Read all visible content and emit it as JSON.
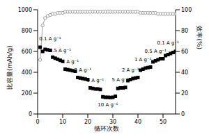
{
  "chart_data": {
    "type": "line",
    "x_label": "循环次数",
    "y_label": "比容量(mAh/g)",
    "y2_label": "效率(%)",
    "x": [
      1,
      2,
      3,
      4,
      5,
      6,
      7,
      8,
      9,
      10,
      11,
      12,
      13,
      14,
      15,
      16,
      17,
      18,
      19,
      20,
      21,
      22,
      23,
      24,
      25,
      26,
      27,
      28,
      29,
      30,
      31,
      32,
      33,
      34,
      35,
      36,
      37,
      38,
      39,
      40,
      41,
      42,
      43,
      44,
      45,
      46,
      47,
      48,
      49,
      50,
      51,
      52,
      53,
      54,
      55
    ],
    "xlim": [
      0,
      55
    ],
    "xticks": [
      0,
      10,
      20,
      30,
      40,
      50
    ],
    "ylim": [
      0,
      1000
    ],
    "yticks": [
      0,
      200,
      400,
      600,
      800,
      1000
    ],
    "y2lim": [
      0,
      100
    ],
    "y2ticks": [
      0,
      20,
      40,
      60,
      80,
      100
    ],
    "series": [
      {
        "name": "比容量",
        "axis": "y",
        "color": "#000000",
        "marker": "square",
        "line_style": "none",
        "values": [
          640,
          600,
          620,
          615,
          610,
          545,
          535,
          525,
          515,
          505,
          430,
          425,
          420,
          415,
          410,
          350,
          345,
          340,
          335,
          330,
          250,
          245,
          240,
          240,
          235,
          165,
          160,
          160,
          158,
          160,
          170,
          245,
          250,
          250,
          255,
          320,
          330,
          340,
          345,
          350,
          420,
          430,
          440,
          445,
          450,
          500,
          510,
          520,
          530,
          530,
          560,
          570,
          580,
          590,
          600
        ]
      },
      {
        "name": "效率",
        "axis": "y2",
        "color": "#888888",
        "marker": "circle",
        "line_style": "solid",
        "values": [
          52,
          85,
          92,
          94,
          95,
          96,
          96,
          97,
          97,
          97,
          98,
          98,
          98,
          98,
          98,
          98,
          98,
          98,
          98,
          98,
          98,
          98,
          98,
          98,
          98,
          98,
          98,
          98,
          98,
          98,
          98,
          98,
          98,
          98,
          98,
          98,
          98,
          98,
          98,
          98,
          97,
          97,
          97,
          97,
          97,
          97,
          97,
          96,
          96,
          96,
          96,
          96,
          96,
          96,
          96
        ]
      }
    ],
    "annotations": [
      {
        "text": "0.1 A g⁻¹",
        "x": 5,
        "y": 720
      },
      {
        "text": "0.5 A g⁻¹",
        "x": 9,
        "y": 610
      },
      {
        "text": "1 A g⁻¹",
        "x": 13,
        "y": 500
      },
      {
        "text": "2 A g⁻¹",
        "x": 18,
        "y": 420
      },
      {
        "text": "5 A g⁻¹",
        "x": 23,
        "y": 320
      },
      {
        "text": "10 A g⁻¹",
        "x": 28,
        "y": 90
      },
      {
        "text": "5 A g⁻¹",
        "x": 33,
        "y": 330
      },
      {
        "text": "2 A g⁻¹",
        "x": 37,
        "y": 420
      },
      {
        "text": "1 A g⁻¹",
        "x": 42,
        "y": 520
      },
      {
        "text": "0.5 A g⁻¹",
        "x": 47,
        "y": 600
      },
      {
        "text": "0.1 A g⁻¹",
        "x": 52,
        "y": 680
      }
    ]
  }
}
